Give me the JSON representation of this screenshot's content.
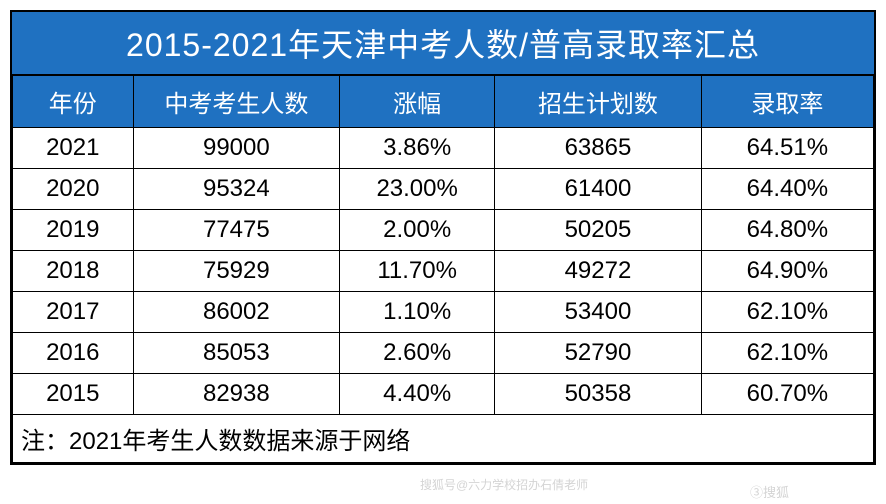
{
  "table": {
    "title": "2015-2021年天津中考人数/普高录取率汇总",
    "header_bg": "#1f71c1",
    "header_color": "#ffffff",
    "columns": [
      "年份",
      "中考考生人数",
      "涨幅",
      "招生计划数",
      "录取率"
    ],
    "rows": [
      [
        "2021",
        "99000",
        "3.86%",
        "63865",
        "64.51%"
      ],
      [
        "2020",
        "95324",
        "23.00%",
        "61400",
        "64.40%"
      ],
      [
        "2019",
        "77475",
        "2.00%",
        "50205",
        "64.80%"
      ],
      [
        "2018",
        "75929",
        "11.70%",
        "49272",
        "64.90%"
      ],
      [
        "2017",
        "86002",
        "1.10%",
        "53400",
        "62.10%"
      ],
      [
        "2016",
        "85053",
        "2.60%",
        "52790",
        "62.10%"
      ],
      [
        "2015",
        "82938",
        "4.40%",
        "50358",
        "60.70%"
      ]
    ],
    "footer": "注：2021年考生人数数据来源于网络",
    "border_color": "#000000",
    "body_bg": "#ffffff",
    "body_color": "#000000",
    "title_fontsize": 32,
    "header_fontsize": 24,
    "cell_fontsize": 24
  },
  "watermark": {
    "text1": "搜狐号@六力学校招办石倩老师",
    "text2": "③搜狐"
  }
}
